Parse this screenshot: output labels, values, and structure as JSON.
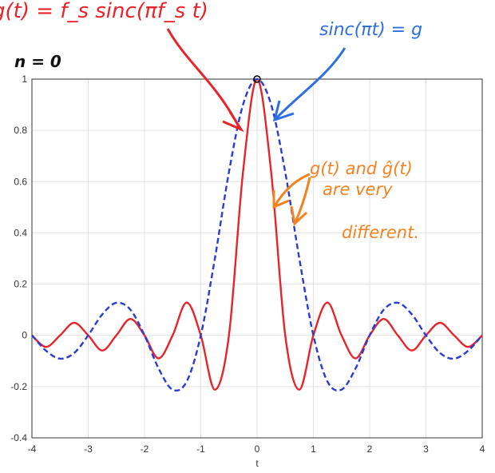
{
  "chart_data": {
    "type": "line",
    "xlabel": "t",
    "ylabel": "",
    "xlim": [
      -4,
      4
    ],
    "ylim": [
      -0.4,
      1
    ],
    "xticks": [
      "-4",
      "-3",
      "-2",
      "-1",
      "0",
      "1",
      "2",
      "3",
      "4"
    ],
    "yticks": [
      "-0.4",
      "-0.2",
      "0",
      "0.2",
      "0.4",
      "0.6",
      "0.8",
      "1"
    ],
    "grid": true,
    "series": [
      {
        "color": "#e8242a",
        "style": "solid",
        "x": [
          -4,
          -3.75,
          -3.5,
          -3.25,
          -3,
          -2.75,
          -2.5,
          -2.25,
          -2,
          -1.75,
          -1.5,
          -1.25,
          -1,
          -0.75,
          -0.5,
          -0.25,
          0,
          0.25,
          0.5,
          0.75,
          1,
          1.25,
          1.5,
          1.75,
          2,
          2.25,
          2.5,
          2.75,
          3,
          3.25,
          3.5,
          3.75,
          4
        ],
        "y": [
          0,
          -0.045,
          0,
          0.049,
          0,
          -0.059,
          0,
          0.064,
          0,
          -0.09,
          0,
          0.128,
          0,
          -0.212,
          0,
          0.637,
          1,
          0.637,
          0,
          -0.212,
          0,
          0.128,
          0,
          -0.09,
          0,
          0.064,
          0,
          -0.059,
          0,
          0.049,
          0,
          -0.045,
          0
        ]
      },
      {
        "color": "#2b3bd6",
        "style": "dashed",
        "x": [
          -4,
          -3.75,
          -3.5,
          -3.25,
          -3,
          -2.75,
          -2.5,
          -2.25,
          -2,
          -1.75,
          -1.5,
          -1.25,
          -1,
          -0.75,
          -0.5,
          -0.25,
          0,
          0.25,
          0.5,
          0.75,
          1,
          1.25,
          1.5,
          1.75,
          2,
          2.25,
          2.5,
          2.75,
          3,
          3.25,
          3.5,
          3.75,
          4
        ],
        "y": [
          0,
          -0.06,
          -0.091,
          -0.069,
          0,
          0.082,
          0.127,
          0.1,
          0,
          -0.129,
          -0.212,
          -0.18,
          0,
          0.3,
          0.637,
          0.9,
          1,
          0.9,
          0.637,
          0.3,
          0,
          -0.18,
          -0.212,
          -0.129,
          0,
          0.1,
          0.127,
          0.082,
          0,
          -0.069,
          -0.091,
          -0.06,
          0
        ]
      }
    ],
    "marker": {
      "x": 0,
      "y": 1
    }
  },
  "annotations": {
    "top_left": "g(t) = f_s sinc(πf_s t)",
    "n_label": "n = 0",
    "top_right": "sinc(πt) = g",
    "orange_line1": "g(t) and ĝ(t)",
    "orange_line2": "are very",
    "orange_line3": "different."
  },
  "colors": {
    "red": "#e8242a",
    "blue": "#2b3bd6",
    "orange": "#f5811f",
    "grid": "#e2e2e2",
    "axis": "#333333"
  }
}
